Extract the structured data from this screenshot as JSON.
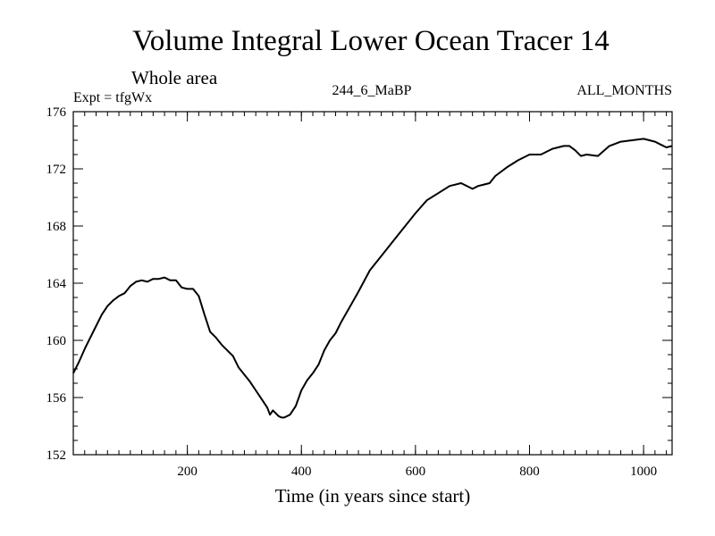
{
  "chart_data": {
    "type": "line",
    "title": "Volume Integral Lower Ocean Tracer 14",
    "subtitle": "Whole area",
    "experiment": "Expt = tfgWx",
    "run_label": "244_6_MaBP",
    "season_label": "ALL_MONTHS",
    "xlabel": "Time (in years since start)",
    "ylabel": "",
    "xlim": [
      0,
      1050
    ],
    "ylim": [
      152,
      176
    ],
    "xticks": [
      200,
      400,
      600,
      800,
      1000
    ],
    "xtick_labels": [
      "200",
      "400",
      "600",
      "800",
      "1000"
    ],
    "yticks": [
      152,
      156,
      160,
      164,
      168,
      172,
      176
    ],
    "ytick_labels": [
      "152",
      "156",
      "160",
      "164",
      "168",
      "172",
      "176"
    ],
    "x_minor_step": 20,
    "y_minor_step": 1,
    "grid": false,
    "line_color": "#000000",
    "series": [
      {
        "name": "Lower Ocean Tracer 14",
        "x": [
          0,
          10,
          20,
          30,
          40,
          50,
          60,
          70,
          80,
          90,
          100,
          110,
          120,
          130,
          140,
          150,
          160,
          170,
          180,
          190,
          200,
          210,
          220,
          230,
          240,
          250,
          260,
          270,
          280,
          290,
          300,
          310,
          320,
          330,
          340,
          345,
          350,
          355,
          360,
          365,
          370,
          380,
          390,
          400,
          410,
          420,
          430,
          440,
          450,
          460,
          470,
          480,
          490,
          500,
          520,
          540,
          560,
          580,
          600,
          620,
          640,
          660,
          680,
          700,
          710,
          720,
          730,
          740,
          760,
          780,
          800,
          820,
          840,
          860,
          870,
          880,
          890,
          900,
          920,
          940,
          960,
          980,
          1000,
          1010,
          1020,
          1030,
          1040,
          1050
        ],
        "values": [
          157.7,
          158.5,
          159.4,
          160.2,
          161.0,
          161.8,
          162.4,
          162.8,
          163.1,
          163.3,
          163.8,
          164.1,
          164.2,
          164.1,
          164.3,
          164.3,
          164.4,
          164.2,
          164.2,
          163.7,
          163.6,
          163.6,
          163.1,
          161.8,
          160.6,
          160.2,
          159.7,
          159.3,
          158.9,
          158.1,
          157.6,
          157.1,
          156.5,
          155.9,
          155.3,
          154.8,
          155.1,
          154.9,
          154.7,
          154.6,
          154.6,
          154.8,
          155.4,
          156.5,
          157.2,
          157.7,
          158.3,
          159.3,
          160.0,
          160.5,
          161.3,
          162.0,
          162.7,
          163.4,
          164.9,
          165.9,
          166.9,
          167.9,
          168.9,
          169.8,
          170.3,
          170.8,
          171.0,
          170.6,
          170.8,
          170.9,
          171.0,
          171.5,
          172.1,
          172.6,
          173.0,
          173.0,
          173.4,
          173.6,
          173.6,
          173.3,
          172.9,
          173.0,
          172.9,
          173.6,
          173.9,
          174.0,
          174.1,
          174.0,
          173.9,
          173.7,
          173.5,
          173.6
        ]
      }
    ]
  }
}
